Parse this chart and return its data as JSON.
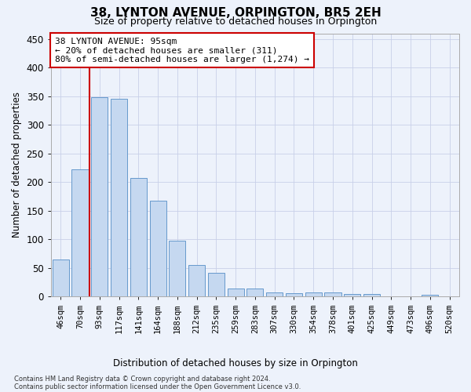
{
  "title": "38, LYNTON AVENUE, ORPINGTON, BR5 2EH",
  "subtitle": "Size of property relative to detached houses in Orpington",
  "xlabel": "Distribution of detached houses by size in Orpington",
  "ylabel": "Number of detached properties",
  "bar_labels": [
    "46sqm",
    "70sqm",
    "93sqm",
    "117sqm",
    "141sqm",
    "164sqm",
    "188sqm",
    "212sqm",
    "235sqm",
    "259sqm",
    "283sqm",
    "307sqm",
    "330sqm",
    "354sqm",
    "378sqm",
    "401sqm",
    "425sqm",
    "449sqm",
    "473sqm",
    "496sqm",
    "520sqm"
  ],
  "bar_heights": [
    65,
    222,
    348,
    345,
    208,
    168,
    98,
    56,
    42,
    15,
    15,
    8,
    6,
    7,
    7,
    5,
    5,
    0,
    0,
    4,
    0
  ],
  "bar_color": "#c5d8f0",
  "bar_edgecolor": "#6699cc",
  "vline_x": 1.5,
  "vline_color": "#cc0000",
  "ylim": [
    0,
    460
  ],
  "yticks": [
    0,
    50,
    100,
    150,
    200,
    250,
    300,
    350,
    400,
    450
  ],
  "annotation_line1": "38 LYNTON AVENUE: 95sqm",
  "annotation_line2": "← 20% of detached houses are smaller (311)",
  "annotation_line3": "80% of semi-detached houses are larger (1,274) →",
  "annotation_box_facecolor": "#ffffff",
  "annotation_box_edgecolor": "#cc0000",
  "footer_line1": "Contains HM Land Registry data © Crown copyright and database right 2024.",
  "footer_line2": "Contains public sector information licensed under the Open Government Licence v3.0.",
  "background_color": "#edf2fb",
  "grid_color": "#c8d0e8"
}
